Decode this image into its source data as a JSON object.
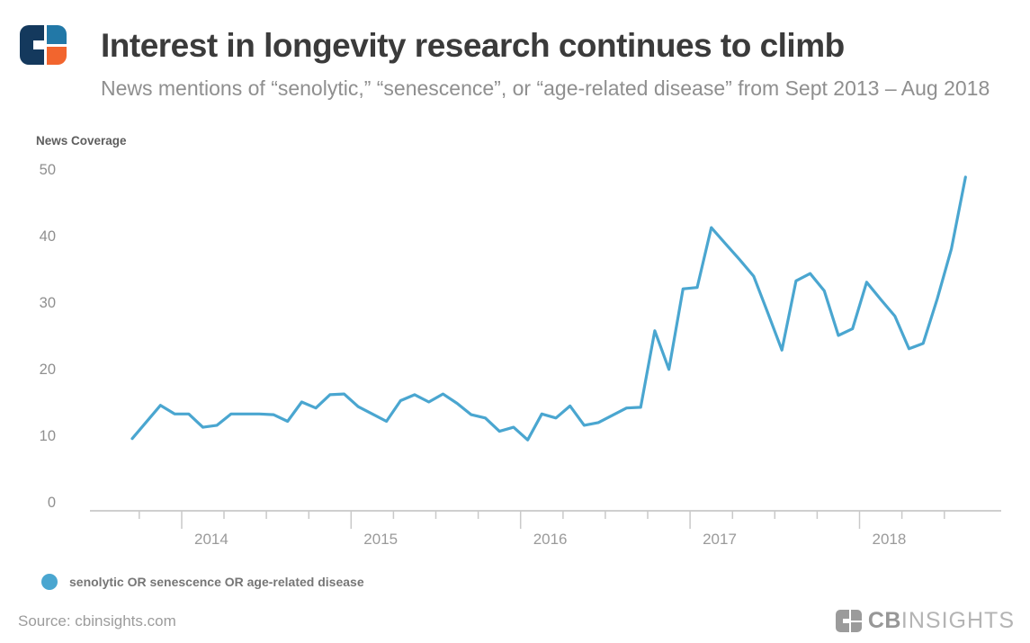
{
  "header": {
    "title": "Interest in longevity research continues to climb",
    "subtitle": "News mentions of “senolytic,” “senescence”, or “age-related disease” from Sept 2013 – Aug 2018"
  },
  "chart_data": {
    "type": "line",
    "title": "Interest in longevity research continues to climb",
    "ylabel": "News Coverage",
    "xlabel": "",
    "ylim": [
      0,
      50
    ],
    "yticks": [
      0,
      10,
      20,
      30,
      40,
      50
    ],
    "grid": false,
    "legend_position": "bottom-left",
    "line_color": "#4aa6d0",
    "year_labels": [
      "2014",
      "2015",
      "2016",
      "2017",
      "2018"
    ],
    "x": [
      "Sep 2013",
      "Oct 2013",
      "Nov 2013",
      "Dec 2013",
      "Jan 2014",
      "Feb 2014",
      "Mar 2014",
      "Apr 2014",
      "May 2014",
      "Jun 2014",
      "Jul 2014",
      "Aug 2014",
      "Sep 2014",
      "Oct 2014",
      "Nov 2014",
      "Dec 2014",
      "Jan 2015",
      "Feb 2015",
      "Mar 2015",
      "Apr 2015",
      "May 2015",
      "Jun 2015",
      "Jul 2015",
      "Aug 2015",
      "Sep 2015",
      "Oct 2015",
      "Nov 2015",
      "Dec 2015",
      "Jan 2016",
      "Feb 2016",
      "Mar 2016",
      "Apr 2016",
      "May 2016",
      "Jun 2016",
      "Jul 2016",
      "Aug 2016",
      "Sep 2016",
      "Oct 2016",
      "Nov 2016",
      "Dec 2016",
      "Jan 2017",
      "Feb 2017",
      "Mar 2017",
      "Apr 2017",
      "May 2017",
      "Jun 2017",
      "Jul 2017",
      "Aug 2017",
      "Sep 2017",
      "Oct 2017",
      "Nov 2017",
      "Dec 2017",
      "Jan 2018",
      "Feb 2018",
      "Mar 2018",
      "Apr 2018",
      "May 2018",
      "Jun 2018",
      "Jul 2018",
      "Aug 2018"
    ],
    "series": [
      {
        "name": "senolytic OR senescence OR age-related disease",
        "values": [
          9.5,
          12,
          14.5,
          13.2,
          13.2,
          11.2,
          11.5,
          13.2,
          13.2,
          13.2,
          13.1,
          12.1,
          15,
          14.1,
          16.1,
          16.2,
          14.3,
          13.2,
          12.1,
          15.2,
          16.1,
          15,
          16.2,
          14.8,
          13.1,
          12.6,
          10.6,
          11.2,
          9.3,
          13.2,
          12.6,
          14.4,
          11.5,
          11.9,
          13,
          14.1,
          14.2,
          25.7,
          19.9,
          32,
          32.2,
          41.2,
          38.8,
          36.4,
          33.9,
          28.4,
          22.8,
          33.2,
          34.3,
          31.7,
          25,
          26,
          33,
          30.4,
          27.9,
          23,
          23.8,
          30.5,
          38,
          48.8
        ]
      }
    ]
  },
  "legend": {
    "label": "senolytic OR senescence OR age-related disease"
  },
  "footer": {
    "source": "Source: cbinsights.com",
    "brand_cb": "CB",
    "brand_insights": "INSIGHTS"
  }
}
